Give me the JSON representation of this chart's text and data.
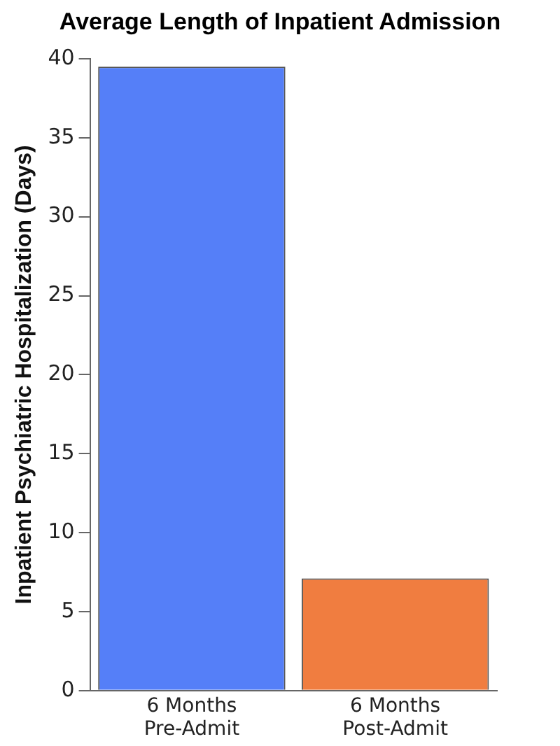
{
  "chart_data": {
    "type": "bar",
    "title": "Average Length of Inpatient Admission",
    "ylabel": "Inpatient Psychiatric Hospitalization (Days)",
    "categories": [
      "6 Months\nPre-Admit",
      "6 Months\nPost-Admit"
    ],
    "values": [
      39.5,
      7.1
    ],
    "colors": [
      "#557ff8",
      "#f07d40"
    ],
    "ylim": [
      0,
      40
    ],
    "yticks": [
      0,
      5,
      10,
      15,
      20,
      25,
      30,
      35,
      40
    ],
    "grid": false,
    "legend": false
  }
}
